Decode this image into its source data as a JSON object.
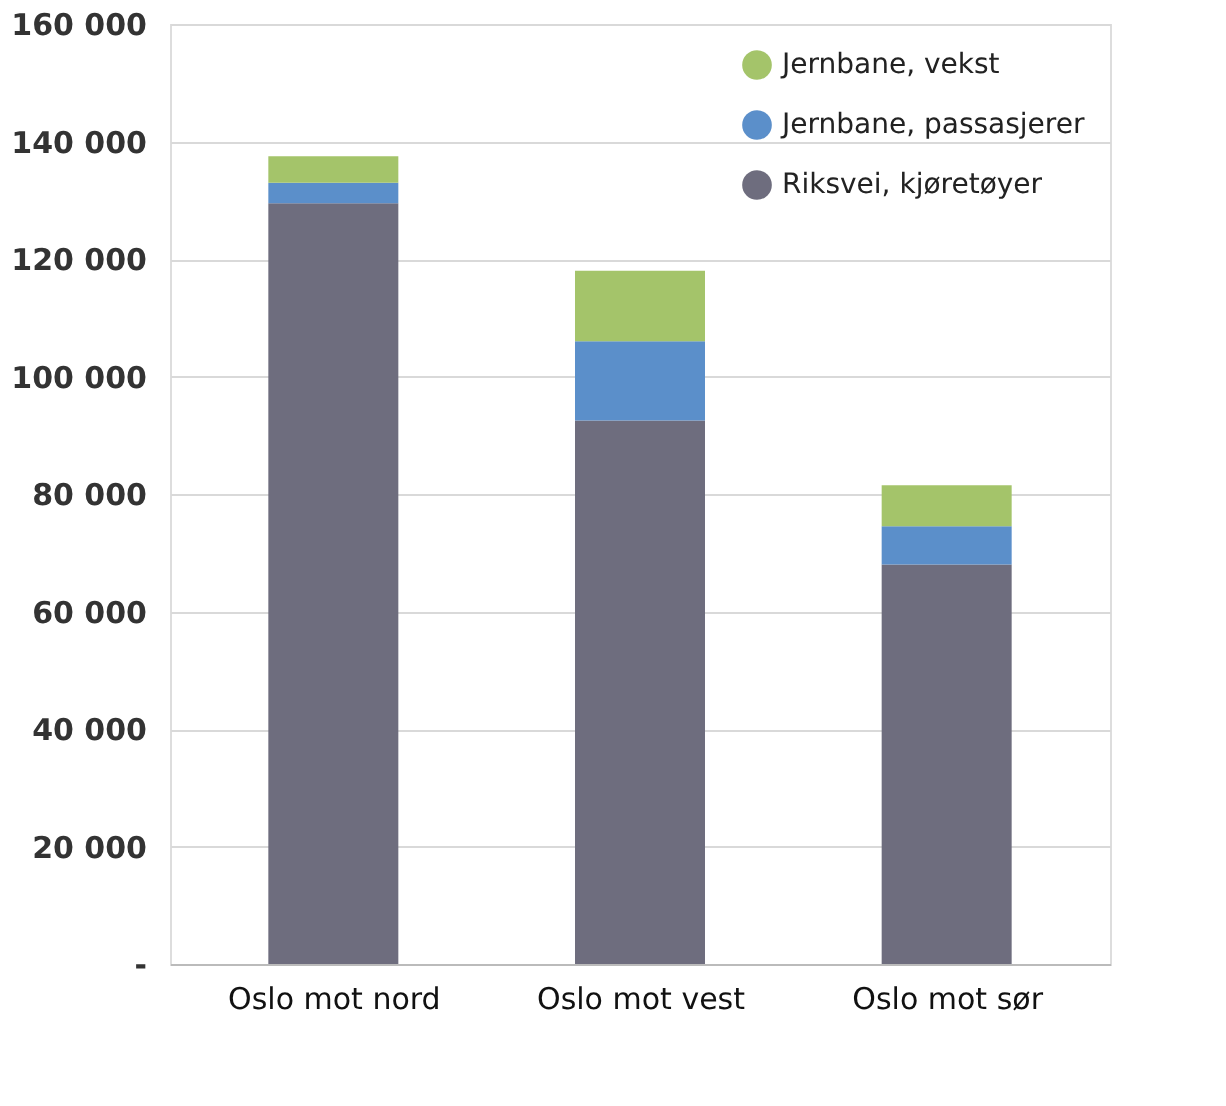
{
  "chart_data": {
    "type": "bar",
    "stacked": true,
    "categories": [
      "Oslo mot nord",
      "Oslo mot vest",
      "Oslo mot sør"
    ],
    "series": [
      {
        "name": "Riksvei, kjøretøyer",
        "color": "#6e6d7e",
        "values": [
          129500,
          92500,
          68000
        ]
      },
      {
        "name": "Jernbane, passasjerer",
        "color": "#5b8fca",
        "values": [
          3500,
          13500,
          6500
        ]
      },
      {
        "name": "Jernbane, vekst",
        "color": "#a4c46a",
        "values": [
          4500,
          12000,
          7000
        ]
      }
    ],
    "ylim": [
      0,
      160000
    ],
    "yticks": [
      {
        "value": 0,
        "label": "-"
      },
      {
        "value": 20000,
        "label": "20 000"
      },
      {
        "value": 40000,
        "label": "40 000"
      },
      {
        "value": 60000,
        "label": "60 000"
      },
      {
        "value": 80000,
        "label": "80 000"
      },
      {
        "value": 100000,
        "label": "100 000"
      },
      {
        "value": 120000,
        "label": "120 000"
      },
      {
        "value": 140000,
        "label": "140 000"
      },
      {
        "value": 160000,
        "label": "160 000"
      }
    ],
    "grid": "y",
    "legend": "top right"
  }
}
